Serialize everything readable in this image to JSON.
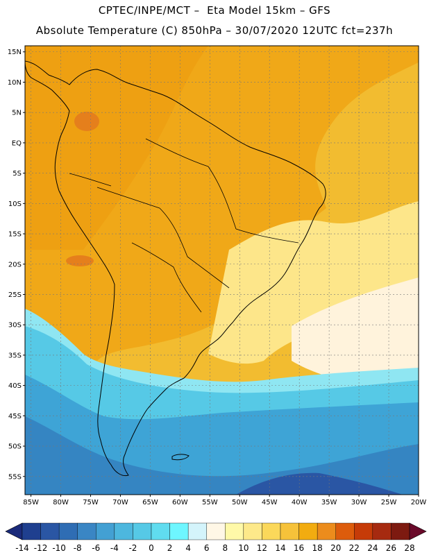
{
  "header": {
    "line1": "CPTEC/INPE/MCT –  Eta Model 15km – GFS",
    "line2": "Absolute Temperature (C) 850hPa – 30/07/2020 12UTC fct=237h"
  },
  "map": {
    "lat_labels": [
      "15N",
      "10N",
      "5N",
      "EQ",
      "5S",
      "10S",
      "15S",
      "20S",
      "25S",
      "30S",
      "35S",
      "40S",
      "45S",
      "50S",
      "55S"
    ],
    "lon_labels": [
      "85W",
      "80W",
      "75W",
      "70W",
      "65W",
      "60W",
      "55W",
      "50W",
      "45W",
      "40W",
      "35W",
      "30W",
      "25W",
      "20W"
    ],
    "lat_range": [
      -58,
      16
    ],
    "lon_range": [
      -86,
      -20
    ],
    "grid": true
  },
  "colorbar": {
    "labels": [
      "-14",
      "-12",
      "-10",
      "-8",
      "-6",
      "-4",
      "-2",
      "0",
      "2",
      "4",
      "6",
      "8",
      "10",
      "12",
      "14",
      "16",
      "18",
      "20",
      "22",
      "24",
      "26",
      "28"
    ],
    "colors": [
      "#1f3f8f",
      "#2a56a4",
      "#2f6db4",
      "#3a86c4",
      "#43a0d3",
      "#4db7de",
      "#56c9e6",
      "#60dcef",
      "#6ef6ff",
      "#d4f4fb",
      "#fff7e6",
      "#fff9a8",
      "#fde98a",
      "#fbd85a",
      "#f6c23a",
      "#f2ac10",
      "#ec8c1c",
      "#dd5c0c",
      "#c63b08",
      "#a62a10",
      "#7d1a10"
    ],
    "low_color": "#1a2a7a",
    "high_color": "#6a0a2a"
  }
}
